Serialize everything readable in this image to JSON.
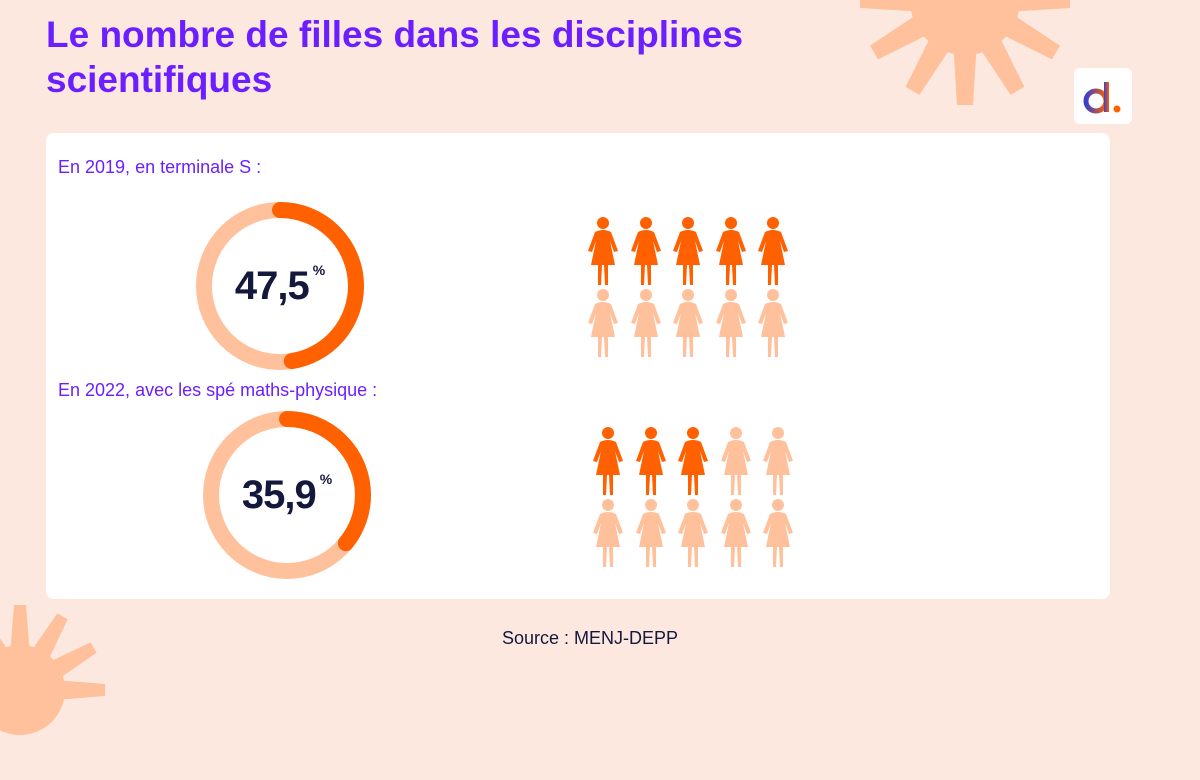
{
  "title": "Le nombre de filles dans les disciplines scientifiques",
  "logo_text": "d.",
  "colors": {
    "accent": "#ff6000",
    "light": "#ffc19c",
    "title": "#6b1fff",
    "text": "#14183d"
  },
  "chart_data": [
    {
      "type": "pie",
      "variant": "donut",
      "label": "En 2019, en terminale S :",
      "value": 47.5,
      "value_text": "47,5",
      "unit": "%",
      "pictogram": {
        "filled": 5,
        "total": 10
      }
    },
    {
      "type": "pie",
      "variant": "donut",
      "label": "En 2022, avec les spé maths-physique :",
      "value": 35.9,
      "value_text": "35,9",
      "unit": "%",
      "pictogram": {
        "filled": 3,
        "total": 10
      }
    }
  ],
  "source": "Source : MENJ-DEPP"
}
